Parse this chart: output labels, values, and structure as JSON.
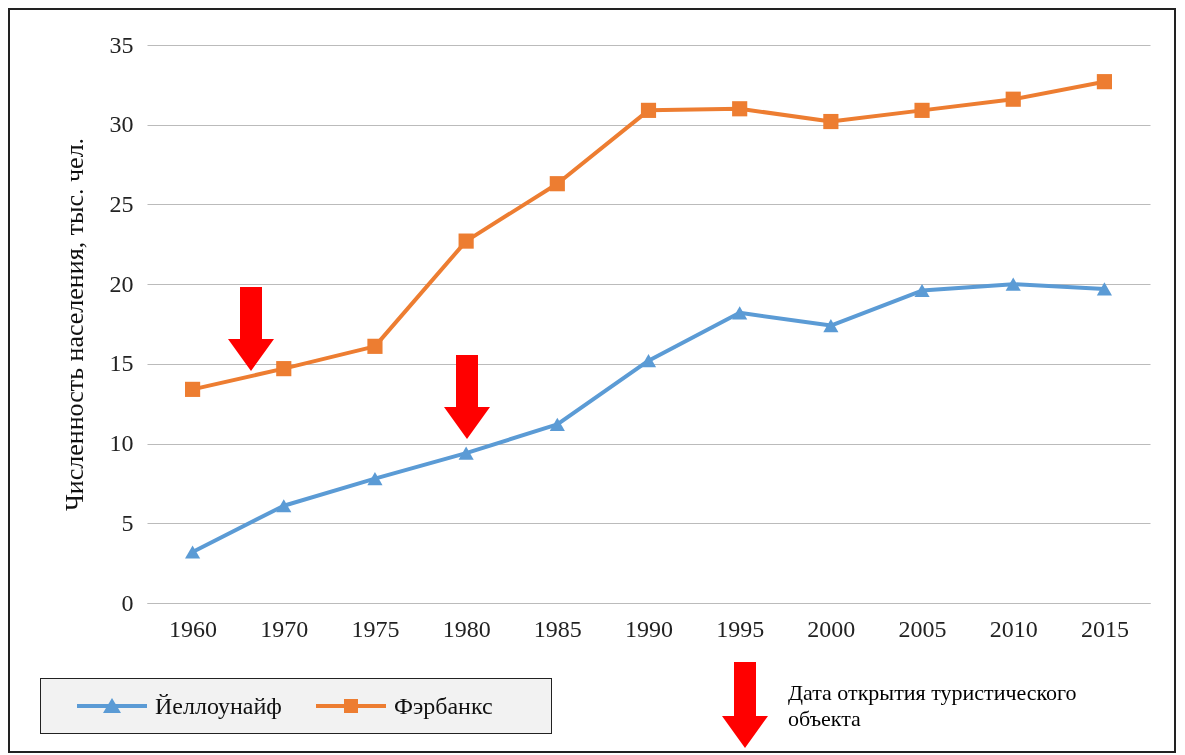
{
  "chart_data": {
    "type": "line",
    "ylabel": "Численность населения, тыс. чел.",
    "categories": [
      "1960",
      "1970",
      "1975",
      "1980",
      "1985",
      "1990",
      "1995",
      "2000",
      "2005",
      "2010",
      "2015"
    ],
    "series": [
      {
        "name": "Йеллоунайф",
        "color": "#5b9bd5",
        "marker": "triangle",
        "values": [
          3.2,
          6.1,
          7.8,
          9.4,
          11.2,
          15.2,
          18.2,
          17.4,
          19.6,
          20.0,
          19.7
        ]
      },
      {
        "name": "Фэрбанкс",
        "color": "#ed7d31",
        "marker": "square",
        "values": [
          13.4,
          14.7,
          16.1,
          22.7,
          26.3,
          30.9,
          31.0,
          30.2,
          30.9,
          31.6,
          32.7
        ]
      }
    ],
    "ylim": [
      0,
      35
    ],
    "yticks": [
      0,
      5,
      10,
      15,
      20,
      25,
      30,
      35
    ],
    "grid": "y",
    "legend": "bottom left",
    "annotations": [
      "Дата открытия туристического объекта"
    ]
  }
}
